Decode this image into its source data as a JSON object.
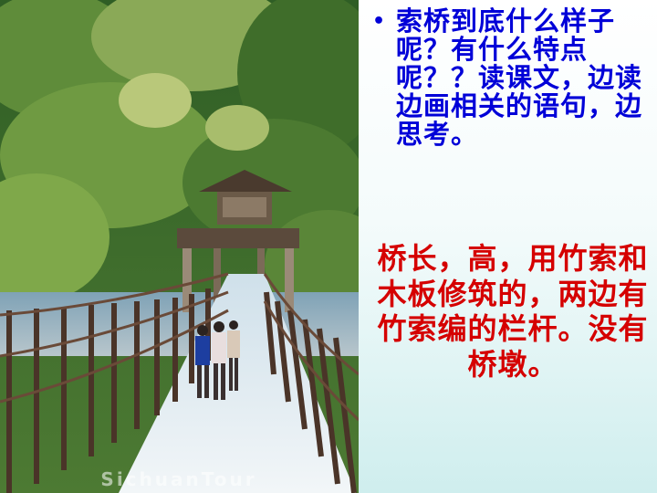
{
  "photo": {
    "description_icon": "suspension-bridge-photo",
    "watermark": "SichuanTour"
  },
  "question": {
    "bullet": "•",
    "text": "索桥到底什么样子呢？有什么特点呢？？读课文，边读边画相关的语句，边思考。"
  },
  "answer": {
    "text": "桥长，高，用竹索和木板修筑的，两边有竹索编的栏杆。没有桥墩。"
  },
  "colors": {
    "question": "#0000d8",
    "answer": "#d50000"
  }
}
